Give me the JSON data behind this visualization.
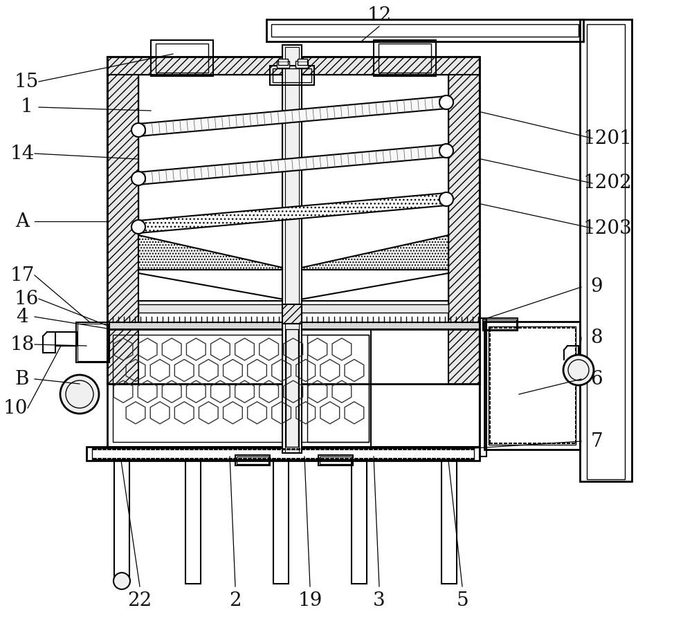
{
  "bg_color": "#ffffff",
  "line_color": "#000000",
  "label_fontsize": 20,
  "line_width": 1.5,
  "labels_left": [
    [
      "15",
      38,
      118
    ],
    [
      "1",
      38,
      155
    ],
    [
      "14",
      32,
      222
    ],
    [
      "A",
      32,
      320
    ],
    [
      "17",
      32,
      398
    ],
    [
      "16",
      38,
      435
    ],
    [
      "4",
      32,
      458
    ],
    [
      "18",
      32,
      498
    ],
    [
      "B",
      32,
      548
    ],
    [
      "10",
      22,
      590
    ]
  ],
  "labels_right": [
    [
      "1201",
      878,
      200
    ],
    [
      "1202",
      878,
      265
    ],
    [
      "1203",
      878,
      330
    ],
    [
      "9",
      868,
      418
    ],
    [
      "8",
      868,
      488
    ],
    [
      "6",
      868,
      548
    ],
    [
      "7",
      868,
      638
    ]
  ],
  "labels_top": [
    [
      "12",
      548,
      22
    ]
  ],
  "labels_bot": [
    [
      "22",
      202,
      868
    ],
    [
      "2",
      340,
      868
    ],
    [
      "19",
      448,
      868
    ],
    [
      "3",
      548,
      868
    ],
    [
      "5",
      668,
      868
    ]
  ]
}
